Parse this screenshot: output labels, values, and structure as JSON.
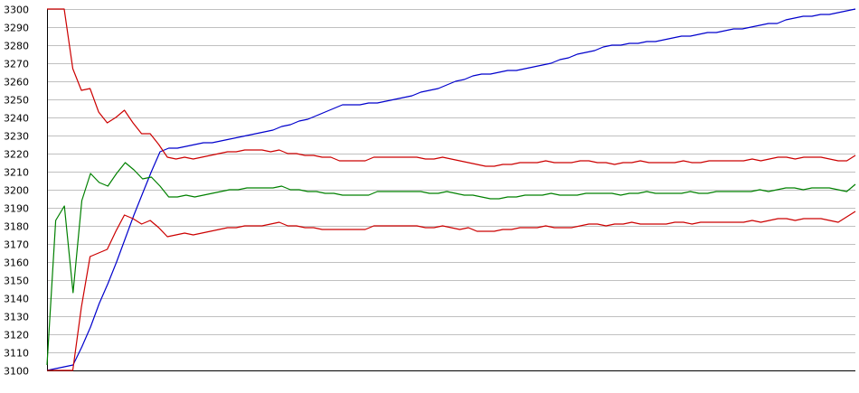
{
  "chart_data": {
    "type": "line",
    "title": "",
    "xlabel": "",
    "ylabel": "",
    "ylim": [
      3100,
      3300
    ],
    "yticks": [
      3100,
      3110,
      3120,
      3130,
      3140,
      3150,
      3160,
      3170,
      3180,
      3190,
      3200,
      3210,
      3220,
      3230,
      3240,
      3250,
      3260,
      3270,
      3280,
      3290,
      3300
    ],
    "grid": true,
    "legend": "none",
    "axis_color": "#000000",
    "grid_color": "#c0c0c0",
    "series": [
      {
        "color": "#0000cc",
        "values": [
          3100,
          3101,
          3102,
          3103,
          3113,
          3124,
          3137,
          3148,
          3160,
          3173,
          3186,
          3198,
          3210,
          3221,
          3223,
          3223,
          3224,
          3225,
          3226,
          3226,
          3227,
          3228,
          3229,
          3230,
          3231,
          3232,
          3233,
          3235,
          3236,
          3238,
          3239,
          3241,
          3243,
          3245,
          3247,
          3247,
          3247,
          3248,
          3248,
          3249,
          3250,
          3251,
          3252,
          3254,
          3255,
          3256,
          3258,
          3260,
          3261,
          3263,
          3264,
          3264,
          3265,
          3266,
          3266,
          3267,
          3268,
          3269,
          3270,
          3272,
          3273,
          3275,
          3276,
          3277,
          3279,
          3280,
          3280,
          3281,
          3281,
          3282,
          3282,
          3283,
          3284,
          3285,
          3285,
          3286,
          3287,
          3287,
          3288,
          3289,
          3289,
          3290,
          3291,
          3292,
          3292,
          3294,
          3295,
          3296,
          3296,
          3297,
          3297,
          3298,
          3299,
          3300
        ]
      },
      {
        "color": "#008000",
        "values": [
          3103,
          3183,
          3191,
          3143,
          3194,
          3209,
          3204,
          3202,
          3209,
          3215,
          3211,
          3206,
          3207,
          3202,
          3196,
          3196,
          3197,
          3196,
          3197,
          3198,
          3199,
          3200,
          3200,
          3201,
          3201,
          3201,
          3201,
          3202,
          3200,
          3200,
          3199,
          3199,
          3198,
          3198,
          3197,
          3197,
          3197,
          3197,
          3199,
          3199,
          3199,
          3199,
          3199,
          3199,
          3198,
          3198,
          3199,
          3198,
          3197,
          3197,
          3196,
          3195,
          3195,
          3196,
          3196,
          3197,
          3197,
          3197,
          3198,
          3197,
          3197,
          3197,
          3198,
          3198,
          3198,
          3198,
          3197,
          3198,
          3198,
          3199,
          3198,
          3198,
          3198,
          3198,
          3199,
          3198,
          3198,
          3199,
          3199,
          3199,
          3199,
          3199,
          3200,
          3199,
          3200,
          3201,
          3201,
          3200,
          3201,
          3201,
          3201,
          3200,
          3199,
          3203
        ]
      },
      {
        "color": "#cc0000",
        "values": [
          3300,
          3300,
          3300,
          3267,
          3255,
          3256,
          3243,
          3237,
          3240,
          3244,
          3237,
          3231,
          3231,
          3225,
          3218,
          3217,
          3218,
          3217,
          3218,
          3219,
          3220,
          3221,
          3221,
          3222,
          3222,
          3222,
          3221,
          3222,
          3220,
          3220,
          3219,
          3219,
          3218,
          3218,
          3216,
          3216,
          3216,
          3216,
          3218,
          3218,
          3218,
          3218,
          3218,
          3218,
          3217,
          3217,
          3218,
          3217,
          3216,
          3215,
          3214,
          3213,
          3213,
          3214,
          3214,
          3215,
          3215,
          3215,
          3216,
          3215,
          3215,
          3215,
          3216,
          3216,
          3215,
          3215,
          3214,
          3215,
          3215,
          3216,
          3215,
          3215,
          3215,
          3215,
          3216,
          3215,
          3215,
          3216,
          3216,
          3216,
          3216,
          3216,
          3217,
          3216,
          3217,
          3218,
          3218,
          3217,
          3218,
          3218,
          3218,
          3217,
          3216,
          3216,
          3219
        ]
      },
      {
        "color": "#cc0000",
        "values": [
          3100,
          3100,
          3100,
          3100,
          3135,
          3163,
          3165,
          3167,
          3177,
          3186,
          3184,
          3181,
          3183,
          3179,
          3174,
          3175,
          3176,
          3175,
          3176,
          3177,
          3178,
          3179,
          3179,
          3180,
          3180,
          3180,
          3181,
          3182,
          3180,
          3180,
          3179,
          3179,
          3178,
          3178,
          3178,
          3178,
          3178,
          3178,
          3180,
          3180,
          3180,
          3180,
          3180,
          3180,
          3179,
          3179,
          3180,
          3179,
          3178,
          3179,
          3177,
          3177,
          3177,
          3178,
          3178,
          3179,
          3179,
          3179,
          3180,
          3179,
          3179,
          3179,
          3180,
          3181,
          3181,
          3180,
          3181,
          3181,
          3182,
          3181,
          3181,
          3181,
          3181,
          3182,
          3182,
          3181,
          3182,
          3182,
          3182,
          3182,
          3182,
          3182,
          3183,
          3182,
          3183,
          3184,
          3184,
          3183,
          3184,
          3184,
          3184,
          3183,
          3182,
          3185,
          3188
        ]
      }
    ]
  }
}
